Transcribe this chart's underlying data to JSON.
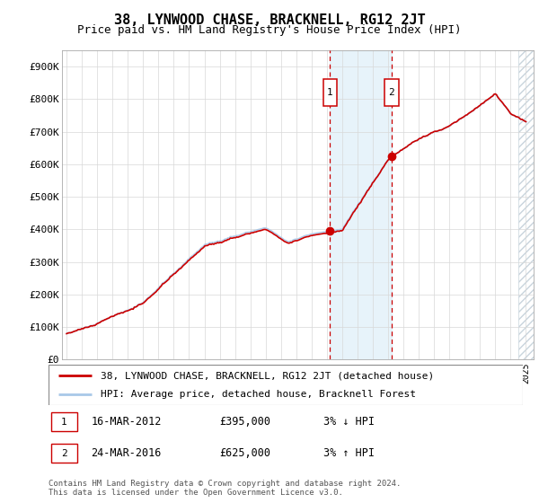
{
  "title": "38, LYNWOOD CHASE, BRACKNELL, RG12 2JT",
  "subtitle": "Price paid vs. HM Land Registry's House Price Index (HPI)",
  "ylim": [
    0,
    950000
  ],
  "yticks": [
    0,
    100000,
    200000,
    300000,
    400000,
    500000,
    600000,
    700000,
    800000,
    900000
  ],
  "ytick_labels": [
    "£0",
    "£100K",
    "£200K",
    "£300K",
    "£400K",
    "£500K",
    "£600K",
    "£700K",
    "£800K",
    "£900K"
  ],
  "xmin": 1995.0,
  "xmax": 2025.5,
  "sale1_date": 2012.21,
  "sale1_price": 395000,
  "sale1_label": "1",
  "sale1_text": "16-MAR-2012",
  "sale1_amount": "£395,000",
  "sale1_hpi": "3% ↓ HPI",
  "sale2_date": 2016.23,
  "sale2_price": 625000,
  "sale2_label": "2",
  "sale2_text": "24-MAR-2016",
  "sale2_amount": "£625,000",
  "sale2_hpi": "3% ↑ HPI",
  "hpi_color": "#a8c8e8",
  "price_color": "#cc0000",
  "shade_color": "#ddeef8",
  "hatch_color": "#c8d4dc",
  "legend_label1": "38, LYNWOOD CHASE, BRACKNELL, RG12 2JT (detached house)",
  "legend_label2": "HPI: Average price, detached house, Bracknell Forest",
  "footer": "Contains HM Land Registry data © Crown copyright and database right 2024.\nThis data is licensed under the Open Government Licence v3.0.",
  "title_fontsize": 11,
  "subtitle_fontsize": 9,
  "axis_fontsize": 8,
  "legend_fontsize": 8,
  "footer_fontsize": 6.5
}
